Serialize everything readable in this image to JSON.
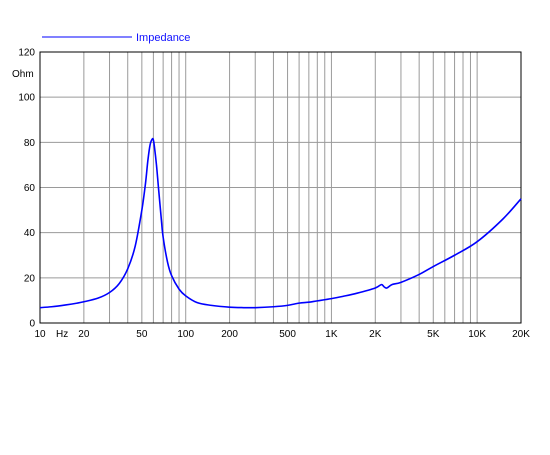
{
  "chart_data": {
    "type": "line",
    "title": "",
    "xlabel": "",
    "ylabel": "Ohm",
    "x_unit_label": "Hz",
    "x_scale": "log",
    "xlim": [
      10,
      20000
    ],
    "ylim": [
      0,
      120
    ],
    "grid": true,
    "legend_position": "top-left",
    "colors": {
      "series": "#0000ff",
      "legend_text": "#1010ff",
      "grid": "#9a9a9a",
      "axis": "#000000",
      "background": "#ffffff"
    },
    "x_ticks": [
      {
        "value": 10,
        "label": "10"
      },
      {
        "value": 20,
        "label": "20"
      },
      {
        "value": 50,
        "label": "50"
      },
      {
        "value": 100,
        "label": "100"
      },
      {
        "value": 200,
        "label": "200"
      },
      {
        "value": 500,
        "label": "500"
      },
      {
        "value": 1000,
        "label": "1K"
      },
      {
        "value": 2000,
        "label": "2K"
      },
      {
        "value": 5000,
        "label": "5K"
      },
      {
        "value": 10000,
        "label": "10K"
      },
      {
        "value": 20000,
        "label": "20K"
      }
    ],
    "y_ticks": [
      {
        "value": 0,
        "label": "0"
      },
      {
        "value": 20,
        "label": "20"
      },
      {
        "value": 40,
        "label": "40"
      },
      {
        "value": 60,
        "label": "60"
      },
      {
        "value": 80,
        "label": "80"
      },
      {
        "value": 100,
        "label": "100"
      },
      {
        "value": 120,
        "label": "120"
      }
    ],
    "series": [
      {
        "name": "Impedance",
        "x": [
          10,
          12,
          15,
          18,
          20,
          25,
          30,
          35,
          40,
          45,
          50,
          53,
          55,
          57,
          59,
          60,
          61,
          63,
          65,
          68,
          70,
          75,
          80,
          90,
          100,
          120,
          150,
          200,
          250,
          300,
          400,
          500,
          600,
          700,
          800,
          1000,
          1200,
          1500,
          2000,
          2200,
          2300,
          2400,
          2600,
          3000,
          4000,
          5000,
          7000,
          10000,
          15000,
          20000
        ],
        "y": [
          6.8,
          7.2,
          8.0,
          8.8,
          9.4,
          11.0,
          13.5,
          17.5,
          24.0,
          34.0,
          50.0,
          62.0,
          72.0,
          79.0,
          81.5,
          81.0,
          78.0,
          70.0,
          60.0,
          46.0,
          38.0,
          27.0,
          21.0,
          15.0,
          12.0,
          9.0,
          7.8,
          7.0,
          6.8,
          6.8,
          7.2,
          7.8,
          8.8,
          9.2,
          9.8,
          10.8,
          11.8,
          13.2,
          15.5,
          17.0,
          16.0,
          15.5,
          17.0,
          18.0,
          21.5,
          25.0,
          30.0,
          36.0,
          46.0,
          55.0
        ]
      }
    ]
  }
}
